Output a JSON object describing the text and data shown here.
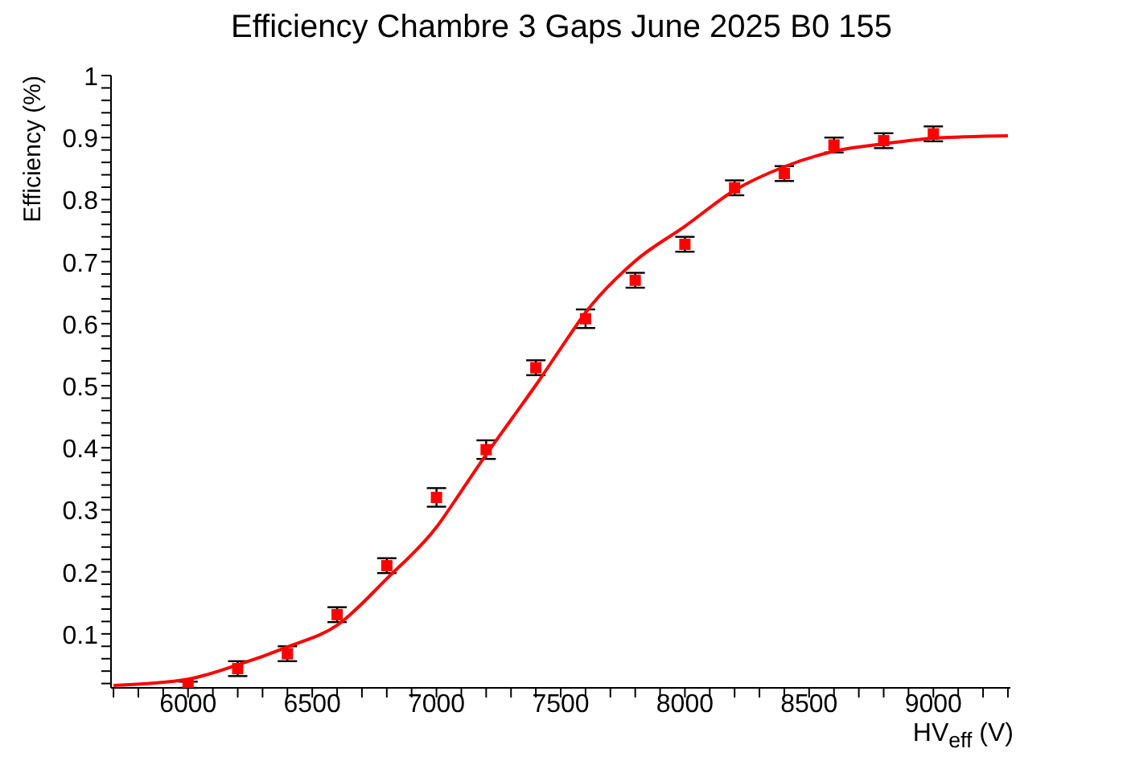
{
  "chart_data": {
    "type": "scatter",
    "title": "Efficiency Chambre 3 Gaps June 2025 B0 155",
    "xlabel": "HV$_{eff}$ (V)",
    "ylabel": "Efficiency (%)",
    "xlim": [
      5690,
      9310
    ],
    "ylim": [
      0.013,
      1
    ],
    "marker": "square",
    "xticks": [
      {
        "value": 5700,
        "label": null
      },
      {
        "value": 5800,
        "label": null
      },
      {
        "value": 5900,
        "label": null
      },
      6000,
      {
        "value": 6100,
        "label": null
      },
      {
        "value": 6200,
        "label": null
      },
      {
        "value": 6300,
        "label": null
      },
      {
        "value": 6400,
        "label": null
      },
      6500,
      {
        "value": 6600,
        "label": null
      },
      {
        "value": 6700,
        "label": null
      },
      {
        "value": 6800,
        "label": null
      },
      {
        "value": 6900,
        "label": null
      },
      7000,
      {
        "value": 7100,
        "label": null
      },
      {
        "value": 7200,
        "label": null
      },
      {
        "value": 7300,
        "label": null
      },
      {
        "value": 7400,
        "label": null
      },
      7500,
      {
        "value": 7600,
        "label": null
      },
      {
        "value": 7700,
        "label": null
      },
      {
        "value": 7800,
        "label": null
      },
      {
        "value": 7900,
        "label": null
      },
      8000,
      {
        "value": 8100,
        "label": null
      },
      {
        "value": 8200,
        "label": null
      },
      {
        "value": 8300,
        "label": null
      },
      {
        "value": 8400,
        "label": null
      },
      8500,
      {
        "value": 8600,
        "label": null
      },
      {
        "value": 8700,
        "label": null
      },
      {
        "value": 8800,
        "label": null
      },
      {
        "value": 8900,
        "label": null
      },
      9000,
      {
        "value": 9100,
        "label": null
      },
      {
        "value": 9200,
        "label": null
      },
      {
        "value": 9300,
        "label": null
      }
    ],
    "yticks": [
      {
        "value": 0.02,
        "label": null
      },
      {
        "value": 0.04,
        "label": null
      },
      {
        "value": 0.06,
        "label": null
      },
      {
        "value": 0.08,
        "label": null
      },
      0.1,
      {
        "value": 0.12,
        "label": null
      },
      {
        "value": 0.14,
        "label": null
      },
      {
        "value": 0.16,
        "label": null
      },
      {
        "value": 0.18,
        "label": null
      },
      0.2,
      {
        "value": 0.22,
        "label": null
      },
      {
        "value": 0.24,
        "label": null
      },
      {
        "value": 0.26,
        "label": null
      },
      {
        "value": 0.28,
        "label": null
      },
      0.3,
      {
        "value": 0.32,
        "label": null
      },
      {
        "value": 0.34,
        "label": null
      },
      {
        "value": 0.36,
        "label": null
      },
      {
        "value": 0.38,
        "label": null
      },
      0.4,
      {
        "value": 0.42,
        "label": null
      },
      {
        "value": 0.44,
        "label": null
      },
      {
        "value": 0.46,
        "label": null
      },
      {
        "value": 0.48,
        "label": null
      },
      0.5,
      {
        "value": 0.52,
        "label": null
      },
      {
        "value": 0.54,
        "label": null
      },
      {
        "value": 0.56,
        "label": null
      },
      {
        "value": 0.58,
        "label": null
      },
      0.6,
      {
        "value": 0.62,
        "label": null
      },
      {
        "value": 0.64,
        "label": null
      },
      {
        "value": 0.66,
        "label": null
      },
      {
        "value": 0.68,
        "label": null
      },
      0.7,
      {
        "value": 0.72,
        "label": null
      },
      {
        "value": 0.74,
        "label": null
      },
      {
        "value": 0.76,
        "label": null
      },
      {
        "value": 0.78,
        "label": null
      },
      0.8,
      {
        "value": 0.82,
        "label": null
      },
      {
        "value": 0.84,
        "label": null
      },
      {
        "value": 0.86,
        "label": null
      },
      {
        "value": 0.88,
        "label": null
      },
      0.9,
      {
        "value": 0.92,
        "label": null
      },
      {
        "value": 0.94,
        "label": null
      },
      {
        "value": 0.96,
        "label": null
      },
      {
        "value": 0.98,
        "label": null
      },
      1
    ],
    "series": [
      {
        "color": "#ff0000",
        "x": [
          6000,
          6200,
          6400,
          6600,
          6800,
          7000,
          7200,
          7400,
          7600,
          7800,
          8000,
          8200,
          8400,
          8600,
          8800,
          9000
        ],
        "values": [
          0.018,
          0.044,
          0.068,
          0.131,
          0.21,
          0.32,
          0.397,
          0.529,
          0.608,
          0.67,
          0.728,
          0.819,
          0.842,
          0.888,
          0.895,
          0.906
        ],
        "errors": [
          0.005,
          0.012,
          0.012,
          0.012,
          0.012,
          0.015,
          0.015,
          0.012,
          0.015,
          0.012,
          0.012,
          0.012,
          0.012,
          0.012,
          0.012,
          0.012
        ]
      },
      {
        "type": "line",
        "color": "#ff0000",
        "marker": "none",
        "x": [
          5700,
          6000,
          6200,
          6400,
          6600,
          6800,
          7000,
          7100,
          7200,
          7300,
          7400,
          7500,
          7600,
          7800,
          8000,
          8200,
          8400,
          8600,
          8800,
          9000,
          9300
        ],
        "values": [
          0.017,
          0.027,
          0.05,
          0.079,
          0.114,
          0.189,
          0.272,
          0.33,
          0.389,
          0.445,
          0.501,
          0.56,
          0.618,
          0.701,
          0.757,
          0.815,
          0.853,
          0.878,
          0.89,
          0.899,
          0.903
        ]
      }
    ]
  }
}
